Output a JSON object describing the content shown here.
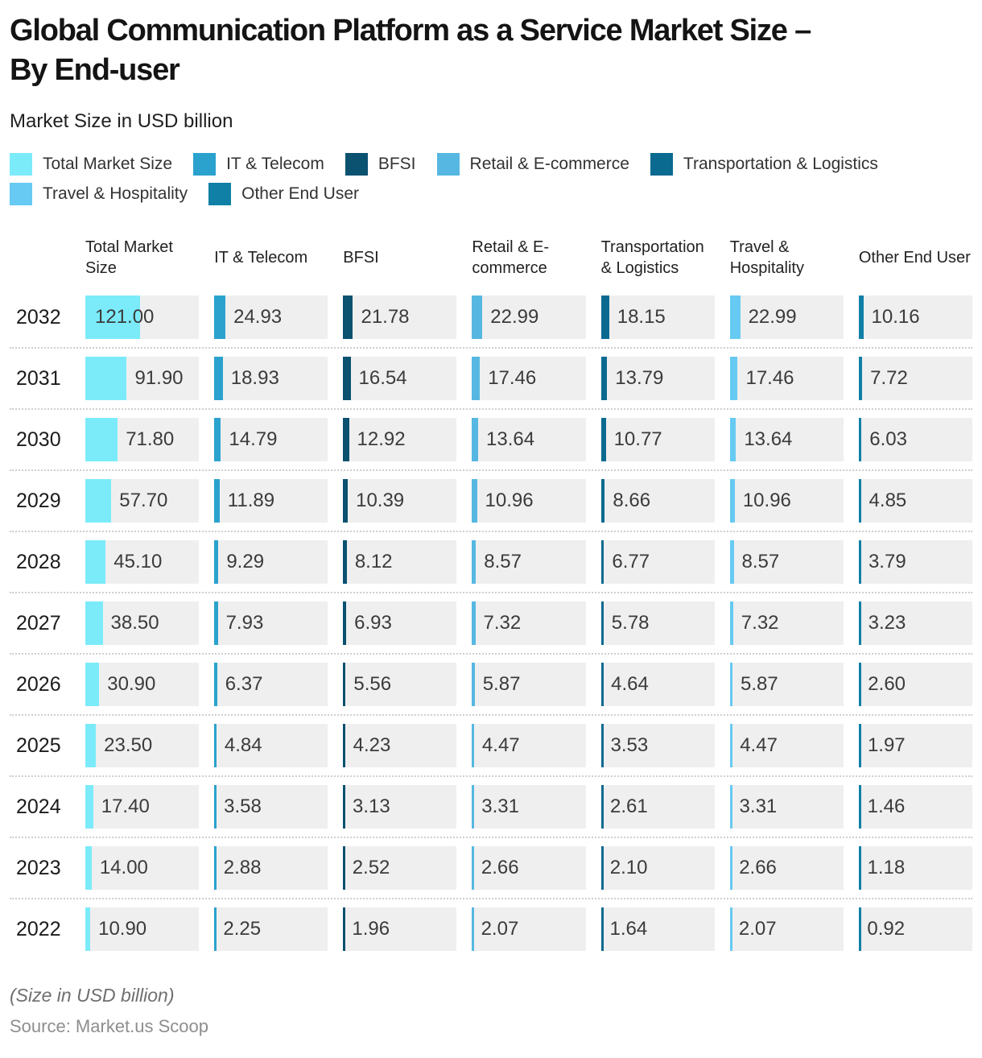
{
  "header": {
    "title_line1": "Global Communication Platform as a Service Market Size –",
    "title_line2": "By End-user",
    "subtitle": "Market Size in USD billion"
  },
  "legend": {
    "items": [
      {
        "label": "Total Market Size",
        "color": "#7bebfa"
      },
      {
        "label": "IT & Telecom",
        "color": "#2ba2ce"
      },
      {
        "label": "BFSI",
        "color": "#0b5170"
      },
      {
        "label": "Retail & E-commerce",
        "color": "#56b8e2"
      },
      {
        "label": "Transportation & Logistics",
        "color": "#0a6a90"
      },
      {
        "label": "Travel & Hospitality",
        "color": "#66caf2"
      },
      {
        "label": "Other End User",
        "color": "#1080a6"
      }
    ]
  },
  "chart_data": {
    "type": "bar",
    "title": "Global Communication Platform as a Service Market Size – By End-user",
    "unit": "USD billion",
    "scale_max": 121,
    "legend_position": "top",
    "categories": [
      "Total Market Size",
      "IT & Telecom",
      "BFSI",
      "Retail & E-commerce",
      "Transportation & Logistics",
      "Travel & Hospitality",
      "Other End User"
    ],
    "colors": [
      "#7bebfa",
      "#2ba2ce",
      "#0b5170",
      "#56b8e2",
      "#0a6a90",
      "#66caf2",
      "#1080a6"
    ],
    "rows": [
      {
        "year": "2032",
        "values": [
          121.0,
          24.93,
          21.78,
          22.99,
          18.15,
          22.99,
          10.16
        ]
      },
      {
        "year": "2031",
        "values": [
          91.9,
          18.93,
          16.54,
          17.46,
          13.79,
          17.46,
          7.72
        ]
      },
      {
        "year": "2030",
        "values": [
          71.8,
          14.79,
          12.92,
          13.64,
          10.77,
          13.64,
          6.03
        ]
      },
      {
        "year": "2029",
        "values": [
          57.7,
          11.89,
          10.39,
          10.96,
          8.66,
          10.96,
          4.85
        ]
      },
      {
        "year": "2028",
        "values": [
          45.1,
          9.29,
          8.12,
          8.57,
          6.77,
          8.57,
          3.79
        ]
      },
      {
        "year": "2027",
        "values": [
          38.5,
          7.93,
          6.93,
          7.32,
          5.78,
          7.32,
          3.23
        ]
      },
      {
        "year": "2026",
        "values": [
          30.9,
          6.37,
          5.56,
          5.87,
          4.64,
          5.87,
          2.6
        ]
      },
      {
        "year": "2025",
        "values": [
          23.5,
          4.84,
          4.23,
          4.47,
          3.53,
          4.47,
          1.97
        ]
      },
      {
        "year": "2024",
        "values": [
          17.4,
          3.58,
          3.13,
          3.31,
          2.61,
          3.31,
          1.46
        ]
      },
      {
        "year": "2023",
        "values": [
          14.0,
          2.88,
          2.52,
          2.66,
          2.1,
          2.66,
          1.18
        ]
      },
      {
        "year": "2022",
        "values": [
          10.9,
          2.25,
          1.96,
          2.07,
          1.64,
          2.07,
          0.92
        ]
      }
    ]
  },
  "footer": {
    "note": "(Size in USD billion)",
    "source": "Source: Market.us Scoop"
  }
}
